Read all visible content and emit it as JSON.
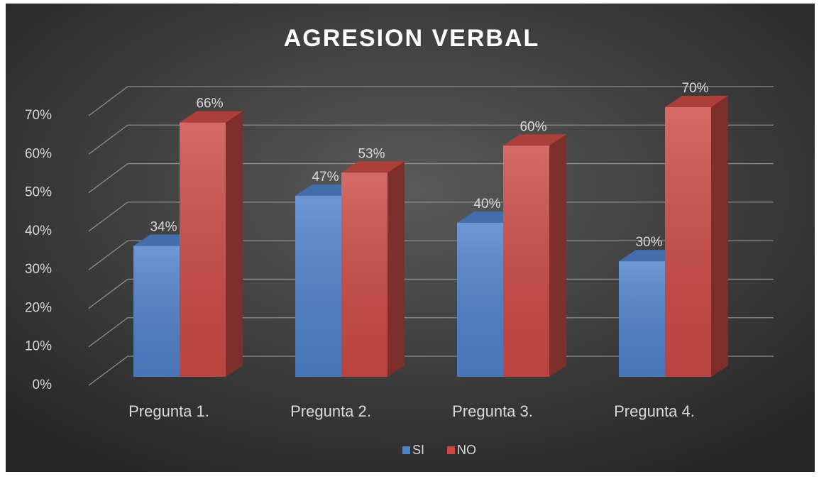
{
  "chart_data": {
    "type": "bar3d",
    "title": "AGRESION VERBAL",
    "categories": [
      "Pregunta 1.",
      "Pregunta 2.",
      "Pregunta 3.",
      "Pregunta 4."
    ],
    "series": [
      {
        "name": "SI",
        "color": "#4f81c9",
        "values": [
          34,
          47,
          40,
          30
        ],
        "value_labels": [
          "34%",
          "47%",
          "40%",
          "30%"
        ]
      },
      {
        "name": "NO",
        "color": "#cc4a45",
        "values": [
          66,
          53,
          60,
          70
        ],
        "value_labels": [
          "66%",
          "53%",
          "60%",
          "70%"
        ]
      }
    ],
    "ylim": [
      0,
      70
    ],
    "yticks": [
      {
        "value": 0,
        "label": "0%"
      },
      {
        "value": 10,
        "label": "10%"
      },
      {
        "value": 20,
        "label": "20%"
      },
      {
        "value": 30,
        "label": "30%"
      },
      {
        "value": 40,
        "label": "40%"
      },
      {
        "value": 50,
        "label": "50%"
      },
      {
        "value": 60,
        "label": "60%"
      },
      {
        "value": 70,
        "label": "70%"
      }
    ],
    "grid": true,
    "legend": "bottom"
  }
}
